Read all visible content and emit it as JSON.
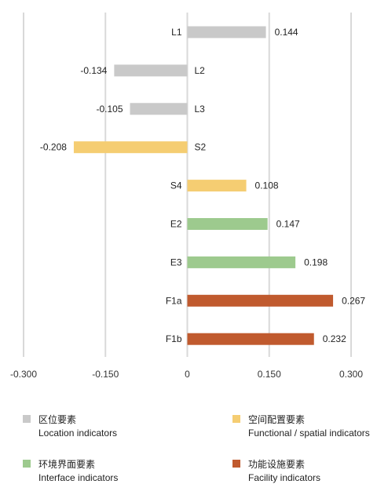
{
  "chart_data": {
    "type": "bar",
    "orientation": "horizontal",
    "categories": [
      "L1",
      "L2",
      "L3",
      "S2",
      "S4",
      "E2",
      "E3",
      "F1a",
      "F1b"
    ],
    "values": [
      0.144,
      -0.134,
      -0.105,
      -0.208,
      0.108,
      0.147,
      0.198,
      0.267,
      0.232
    ],
    "value_labels": [
      "0.144",
      "-0.134",
      "-0.105",
      "-0.208",
      "0.108",
      "0.147",
      "0.198",
      "0.267",
      "0.232"
    ],
    "groups": [
      "location",
      "location",
      "location",
      "spatial",
      "spatial",
      "interface",
      "interface",
      "facility",
      "facility"
    ],
    "xlim": [
      -0.3,
      0.3
    ],
    "xticks": [
      -0.3,
      -0.15,
      0,
      0.15,
      0.3
    ],
    "xtick_labels": [
      "-0.300",
      "-0.150",
      "0",
      "0.150",
      "0.300"
    ],
    "grid": true,
    "legend_position": "bottom",
    "title": "",
    "xlabel": "",
    "ylabel": ""
  },
  "legend": [
    {
      "key": "location",
      "cn": "区位要素",
      "en": "Location indicators",
      "color": "#c9c9c9"
    },
    {
      "key": "spatial",
      "cn": "空间配置要素",
      "en": "Functional / spatial indicators",
      "color": "#f5cd72"
    },
    {
      "key": "interface",
      "cn": "环境界面要素",
      "en": "Interface indicators",
      "color": "#9dca8e"
    },
    {
      "key": "facility",
      "cn": "功能设施要素",
      "en": "Facility indicators",
      "color": "#c05a2e"
    }
  ],
  "colors": {
    "grid": "#d9d9d9"
  }
}
